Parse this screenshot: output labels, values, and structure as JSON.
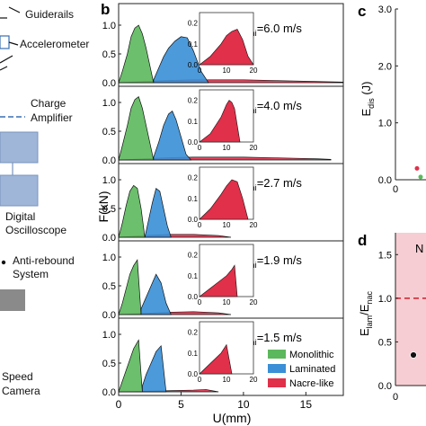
{
  "colors": {
    "monolithic": "#5cb85c",
    "laminated": "#3a8fd6",
    "nacre": "#e0304a",
    "shade": "#f6cdd2",
    "setup": "#9fb6d8"
  },
  "setup": {
    "labels": [
      "Guiderails",
      "Accelerometer",
      "Charge",
      "Amplifier",
      "Digital",
      "Oscilloscope",
      "Anti-rebound",
      "System",
      "Speed",
      "Camera"
    ]
  },
  "panel_b": {
    "letter": "b",
    "ylabel": "F(kN)",
    "xlabel": "U(mm)",
    "xticks": [
      "0",
      "5",
      "10",
      "15"
    ],
    "legend": [
      "Monolithic",
      "Laminated",
      "Nacre-like"
    ],
    "inset_xticks": [
      "0",
      "10",
      "20"
    ],
    "inset_yticks": [
      "0.0",
      "0.1",
      "0.2"
    ]
  },
  "panel_c": {
    "letter": "c",
    "ylabel": "E",
    "ylabel_sub": "dis",
    "ylabel_unit": "(J)",
    "yticks": [
      "3.0",
      "2.0",
      "1.0",
      "0.0"
    ],
    "xtick": "0"
  },
  "panel_d": {
    "letter": "d",
    "ylabel": "E",
    "ylabel_sub1": "lam",
    "ylabel_mid": "/E",
    "ylabel_sub2": "nac",
    "yticks": [
      "1.5",
      "1.0",
      "0.5",
      "0.0"
    ],
    "xtick": "0",
    "region_label": "N"
  },
  "chart_data": [
    {
      "type": "line",
      "panel": "b",
      "xlabel": "U(mm)",
      "ylabel": "F(kN)",
      "xlim": [
        0,
        18
      ],
      "ylim": [
        0,
        1.5
      ],
      "subplots": [
        {
          "annotation": "V",
          "annotation_sub": "ini",
          "annotation_value": "=6.0 m/s",
          "yticks": [
            "0.0",
            "0.5",
            "1.0"
          ],
          "series": [
            {
              "name": "Monolithic",
              "x": [
                0,
                0.3,
                0.7,
                1.0,
                1.3,
                1.6,
                1.9,
                2.2,
                2.5,
                2.8
              ],
              "y": [
                0,
                0.2,
                0.5,
                0.8,
                0.95,
                1.0,
                0.85,
                0.6,
                0.3,
                0
              ]
            },
            {
              "name": "Laminated",
              "x": [
                2.8,
                3.2,
                3.6,
                4.0,
                4.5,
                5.0,
                5.5,
                6.0,
                6.6,
                7.2
              ],
              "y": [
                0.05,
                0.25,
                0.45,
                0.6,
                0.72,
                0.8,
                0.78,
                0.55,
                0.2,
                0
              ]
            },
            {
              "name": "Nacre-like",
              "x": [
                0,
                2,
                4,
                6,
                8,
                10,
                12,
                14,
                16,
                18
              ],
              "y": [
                0,
                0.02,
                0.04,
                0.05,
                0.05,
                0.05,
                0.04,
                0.03,
                0.02,
                0.01
              ]
            }
          ],
          "inset": {
            "x": [
              0,
              4,
              8,
              10,
              12,
              14,
              16,
              18,
              20
            ],
            "y": [
              0,
              0.04,
              0.1,
              0.14,
              0.16,
              0.17,
              0.12,
              0.04,
              0
            ]
          }
        },
        {
          "annotation": "V",
          "annotation_sub": "ini",
          "annotation_value": "=4.0 m/s",
          "yticks": [
            "0.0",
            "0.5",
            "1.0"
          ],
          "series": [
            {
              "name": "Monolithic",
              "x": [
                0,
                0.3,
                0.7,
                1.0,
                1.3,
                1.6,
                1.9,
                2.2,
                2.5,
                2.8
              ],
              "y": [
                0,
                0.25,
                0.6,
                0.9,
                1.05,
                1.1,
                0.9,
                0.6,
                0.3,
                0
              ]
            },
            {
              "name": "Laminated",
              "x": [
                2.8,
                3.2,
                3.6,
                4.0,
                4.3,
                4.6,
                5.0,
                5.4,
                5.8
              ],
              "y": [
                0.05,
                0.3,
                0.6,
                0.8,
                0.85,
                0.7,
                0.4,
                0.1,
                0
              ]
            },
            {
              "name": "Nacre-like",
              "x": [
                0,
                2,
                4,
                6,
                8,
                10,
                12,
                14,
                16,
                17
              ],
              "y": [
                0,
                0.02,
                0.04,
                0.05,
                0.05,
                0.05,
                0.04,
                0.03,
                0.02,
                0.01
              ]
            }
          ],
          "inset": {
            "x": [
              0,
              4,
              8,
              10,
              11,
              12,
              13,
              14,
              15
            ],
            "y": [
              0,
              0.04,
              0.12,
              0.18,
              0.2,
              0.19,
              0.16,
              0.08,
              0
            ]
          }
        },
        {
          "annotation": "V",
          "annotation_sub": "ini",
          "annotation_value": "=2.7 m/s",
          "yticks": [
            "0.0",
            "0.5",
            "1.0"
          ],
          "series": [
            {
              "name": "Monolithic",
              "x": [
                0,
                0.3,
                0.6,
                0.9,
                1.2,
                1.5,
                1.8,
                2.1
              ],
              "y": [
                0,
                0.25,
                0.55,
                0.8,
                0.9,
                0.85,
                0.5,
                0
              ]
            },
            {
              "name": "Laminated",
              "x": [
                2.1,
                2.4,
                2.7,
                3.0,
                3.3,
                3.6,
                3.9,
                4.2
              ],
              "y": [
                0,
                0.3,
                0.6,
                0.85,
                0.8,
                0.5,
                0.2,
                0
              ]
            },
            {
              "name": "Nacre-like",
              "x": [
                0,
                2,
                4,
                6,
                8,
                9
              ],
              "y": [
                0,
                0.03,
                0.05,
                0.05,
                0.03,
                0
              ]
            }
          ],
          "inset": {
            "x": [
              0,
              4,
              8,
              10,
              12,
              14,
              16,
              18
            ],
            "y": [
              0,
              0.05,
              0.12,
              0.16,
              0.19,
              0.18,
              0.1,
              0
            ]
          }
        },
        {
          "annotation": "V",
          "annotation_sub": "ini",
          "annotation_value": "=1.9 m/s",
          "yticks": [
            "0.0",
            "0.5",
            "1.0"
          ],
          "series": [
            {
              "name": "Monolithic",
              "x": [
                0,
                0.3,
                0.6,
                0.9,
                1.2,
                1.5,
                1.8
              ],
              "y": [
                0,
                0.2,
                0.45,
                0.7,
                0.85,
                0.95,
                0
              ]
            },
            {
              "name": "Laminated",
              "x": [
                1.8,
                2.2,
                2.6,
                3.0,
                3.4,
                3.8,
                4.2
              ],
              "y": [
                0.1,
                0.3,
                0.5,
                0.7,
                0.55,
                0.2,
                0
              ]
            },
            {
              "name": "Nacre-like",
              "x": [
                0,
                2,
                4,
                6,
                8,
                9
              ],
              "y": [
                0,
                0.02,
                0.04,
                0.05,
                0.03,
                0
              ]
            }
          ],
          "inset": {
            "x": [
              0,
              4,
              8,
              10,
              12,
              13,
              14
            ],
            "y": [
              0,
              0.04,
              0.08,
              0.1,
              0.13,
              0.15,
              0
            ]
          }
        },
        {
          "annotation": "V",
          "annotation_sub": "ini",
          "annotation_value": "=1.5 m/s",
          "yticks": [
            "0.0",
            "0.5",
            "1.0"
          ],
          "series": [
            {
              "name": "Monolithic",
              "x": [
                0,
                0.4,
                0.8,
                1.2,
                1.6,
                1.9
              ],
              "y": [
                0,
                0.25,
                0.5,
                0.75,
                0.9,
                0
              ]
            },
            {
              "name": "Laminated",
              "x": [
                1.9,
                2.2,
                2.6,
                3.0,
                3.4,
                3.8
              ],
              "y": [
                0.1,
                0.3,
                0.5,
                0.7,
                0.8,
                0
              ]
            },
            {
              "name": "Nacre-like",
              "x": [
                0,
                2,
                4,
                6,
                7,
                8
              ],
              "y": [
                0,
                0.01,
                0.02,
                0.03,
                0.04,
                0
              ]
            }
          ],
          "inset": {
            "x": [
              0,
              4,
              8,
              10,
              12
            ],
            "y": [
              0,
              0.05,
              0.1,
              0.14,
              0
            ]
          }
        }
      ]
    },
    {
      "type": "scatter",
      "panel": "c",
      "ylabel": "E_dis (J)",
      "ylim": [
        0,
        3.0
      ],
      "series": [
        {
          "name": "Monolithic",
          "x": [
            0.7
          ],
          "y": [
            0.05
          ]
        },
        {
          "name": "Nacre-like",
          "x": [
            0.5
          ],
          "y": [
            0.2
          ]
        }
      ]
    },
    {
      "type": "scatter",
      "panel": "d",
      "ylabel": "E_lam/E_nac",
      "ylim": [
        0,
        1.75
      ],
      "reference_line": 1.0,
      "series": [
        {
          "name": "",
          "x": [
            0.5
          ],
          "y": [
            0.35
          ]
        }
      ]
    }
  ]
}
